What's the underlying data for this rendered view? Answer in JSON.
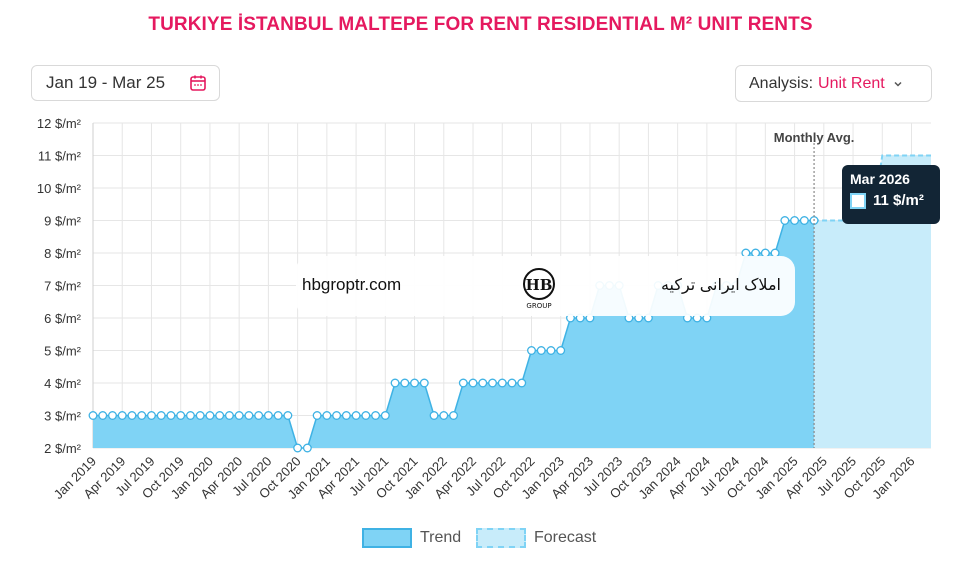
{
  "header": {
    "title": "TURKIYE İSTANBUL MALTEPE FOR RENT RESIDENTIAL M² UNIT RENTS",
    "date_range": "Jan 19 - Mar 25",
    "analysis_label": "Analysis:",
    "analysis_value": "Unit Rent"
  },
  "watermark": {
    "left_text": "hbgroptr.com",
    "logo_text": "HB",
    "logo_sub": "GROUP",
    "right_text": "املاک ایرانی ترکیه"
  },
  "tooltip": {
    "title": "Mar 2026",
    "value": "11 $/m²"
  },
  "legend": {
    "trend": "Trend",
    "forecast": "Forecast"
  },
  "colors": {
    "accent": "#e5195f",
    "trend_fill": "#7fd3f5",
    "trend_line": "#3fb2e4",
    "forecast_fill": "#c8ecfa",
    "tooltip_bg": "#122535"
  },
  "chart_data": {
    "type": "area",
    "title": "TURKIYE İSTANBUL MALTEPE FOR RENT RESIDENTIAL M² UNIT RENTS",
    "ylabel_unit": "$/m²",
    "ylim": [
      2,
      12
    ],
    "y_ticks": [
      "2 $/m²",
      "3 $/m²",
      "4 $/m²",
      "5 $/m²",
      "6 $/m²",
      "7 $/m²",
      "8 $/m²",
      "9 $/m²",
      "10 $/m²",
      "11 $/m²",
      "12 $/m²"
    ],
    "x_ticks": [
      "Jan 2019",
      "Apr 2019",
      "Jul 2019",
      "Oct 2019",
      "Jan 2020",
      "Apr 2020",
      "Jul 2020",
      "Oct 2020",
      "Jan 2021",
      "Apr 2021",
      "Jul 2021",
      "Oct 2021",
      "Jan 2022",
      "Apr 2022",
      "Jul 2022",
      "Oct 2022",
      "Jan 2023",
      "Apr 2023",
      "Jul 2023",
      "Oct 2023",
      "Jan 2024",
      "Apr 2024",
      "Jul 2024",
      "Oct 2024",
      "Jan 2025",
      "Apr 2025",
      "Jul 2025",
      "Oct 2025",
      "Jan 2026"
    ],
    "annotation": "Monthly Avg.",
    "grid": true,
    "legend_position": "bottom",
    "series": [
      {
        "name": "Trend",
        "x": [
          "Jan 2019",
          "Feb 2019",
          "Mar 2019",
          "Apr 2019",
          "May 2019",
          "Jun 2019",
          "Jul 2019",
          "Aug 2019",
          "Sep 2019",
          "Oct 2019",
          "Nov 2019",
          "Dec 2019",
          "Jan 2020",
          "Feb 2020",
          "Mar 2020",
          "Apr 2020",
          "May 2020",
          "Jun 2020",
          "Jul 2020",
          "Aug 2020",
          "Sep 2020",
          "Oct 2020",
          "Nov 2020",
          "Dec 2020",
          "Jan 2021",
          "Feb 2021",
          "Mar 2021",
          "Apr 2021",
          "May 2021",
          "Jun 2021",
          "Jul 2021",
          "Aug 2021",
          "Sep 2021",
          "Oct 2021",
          "Nov 2021",
          "Dec 2021",
          "Jan 2022",
          "Feb 2022",
          "Mar 2022",
          "Apr 2022",
          "May 2022",
          "Jun 2022",
          "Jul 2022",
          "Aug 2022",
          "Sep 2022",
          "Oct 2022",
          "Nov 2022",
          "Dec 2022",
          "Jan 2023",
          "Feb 2023",
          "Mar 2023",
          "Apr 2023",
          "May 2023",
          "Jun 2023",
          "Jul 2023",
          "Aug 2023",
          "Sep 2023",
          "Oct 2023",
          "Nov 2023",
          "Dec 2023",
          "Jan 2024",
          "Feb 2024",
          "Mar 2024",
          "Apr 2024",
          "May 2024",
          "Jun 2024",
          "Jul 2024",
          "Aug 2024",
          "Sep 2024",
          "Oct 2024",
          "Nov 2024",
          "Dec 2024",
          "Jan 2025",
          "Feb 2025",
          "Mar 2025"
        ],
        "values": [
          3,
          3,
          3,
          3,
          3,
          3,
          3,
          3,
          3,
          3,
          3,
          3,
          3,
          3,
          3,
          3,
          3,
          3,
          3,
          3,
          3,
          2,
          2,
          3,
          3,
          3,
          3,
          3,
          3,
          3,
          3,
          4,
          4,
          4,
          4,
          3,
          3,
          3,
          4,
          4,
          4,
          4,
          4,
          4,
          4,
          5,
          5,
          5,
          5,
          6,
          6,
          6,
          7,
          7,
          7,
          6,
          6,
          6,
          7,
          7,
          7,
          6,
          6,
          6,
          7,
          7,
          7,
          8,
          8,
          8,
          8,
          9,
          9,
          9,
          9
        ]
      },
      {
        "name": "Forecast",
        "x": [
          "Mar 2025",
          "Apr 2025",
          "May 2025",
          "Jun 2025",
          "Jul 2025",
          "Aug 2025",
          "Sep 2025",
          "Oct 2025",
          "Nov 2025",
          "Dec 2025",
          "Jan 2026",
          "Feb 2026",
          "Mar 2026"
        ],
        "values": [
          9,
          9,
          9,
          9,
          9,
          9,
          9,
          11,
          11,
          11,
          11,
          11,
          11
        ]
      }
    ]
  }
}
